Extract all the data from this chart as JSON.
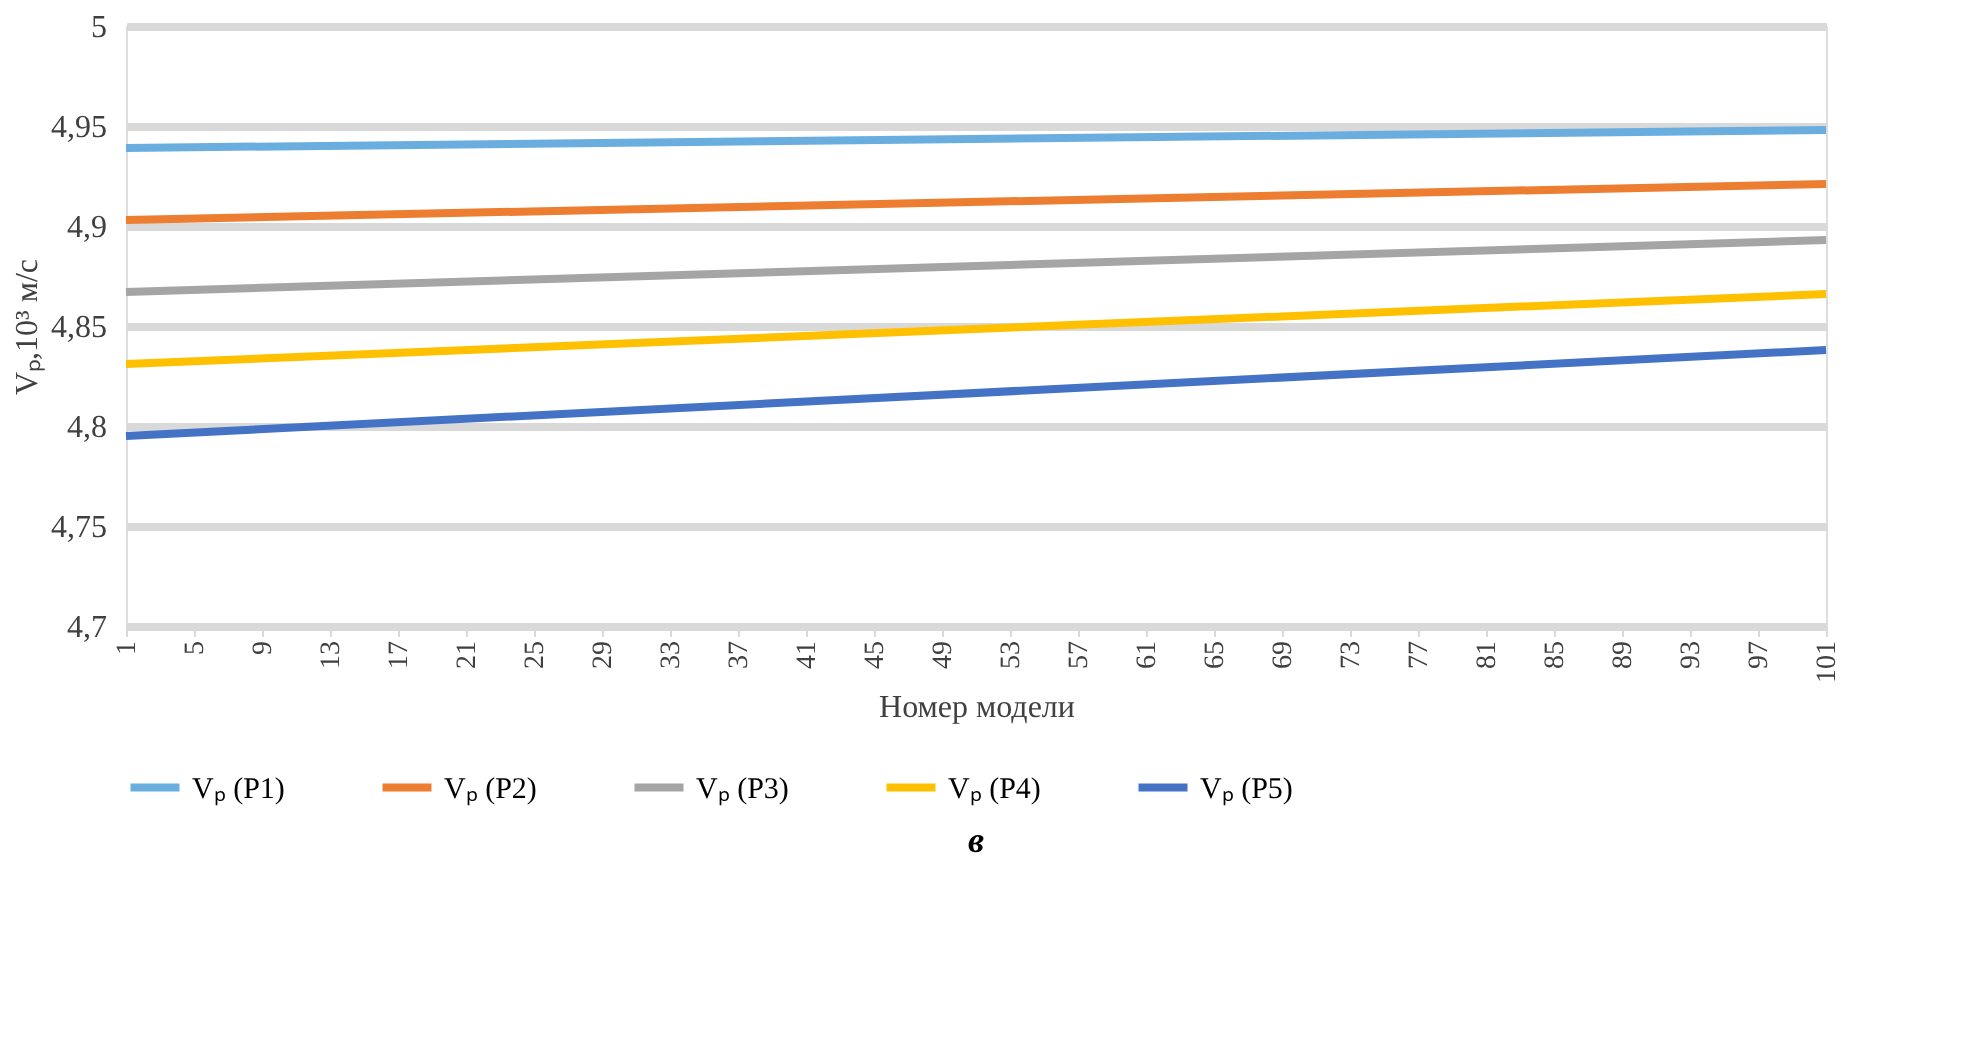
{
  "chart_data": {
    "type": "line",
    "title": "в",
    "xlabel": "Номер модели",
    "ylabel": "Vₚ,10³ м/с",
    "x": [
      1,
      101
    ],
    "xlim": [
      1,
      101
    ],
    "xticks": [
      1,
      5,
      9,
      13,
      17,
      21,
      25,
      29,
      33,
      37,
      41,
      45,
      49,
      53,
      57,
      61,
      65,
      69,
      73,
      77,
      81,
      85,
      89,
      93,
      97,
      101
    ],
    "ylim": [
      4.7,
      5
    ],
    "yticks": [
      {
        "value": 4.7,
        "label": "4,7"
      },
      {
        "value": 4.75,
        "label": "4,75"
      },
      {
        "value": 4.8,
        "label": "4,8"
      },
      {
        "value": 4.85,
        "label": "4,85"
      },
      {
        "value": 4.9,
        "label": "4,9"
      },
      {
        "value": 4.95,
        "label": "4,95"
      },
      {
        "value": 5,
        "label": "5"
      }
    ],
    "grid": "y",
    "legend": "bottom",
    "marker": "none",
    "line_style": "solid",
    "series": [
      {
        "name": "Vₚ (P1)",
        "color": "#6aaee0",
        "values": [
          4.939,
          4.948
        ]
      },
      {
        "name": "Vₚ (P2)",
        "color": "#ed7d31",
        "values": [
          4.903,
          4.921
        ]
      },
      {
        "name": "Vₚ (P3)",
        "color": "#a5a5a5",
        "values": [
          4.867,
          4.893
        ]
      },
      {
        "name": "Vₚ (P4)",
        "color": "#ffc000",
        "values": [
          4.831,
          4.866
        ]
      },
      {
        "name": "Vₚ (P5)",
        "color": "#4472c4",
        "values": [
          4.795,
          4.838
        ]
      }
    ]
  }
}
